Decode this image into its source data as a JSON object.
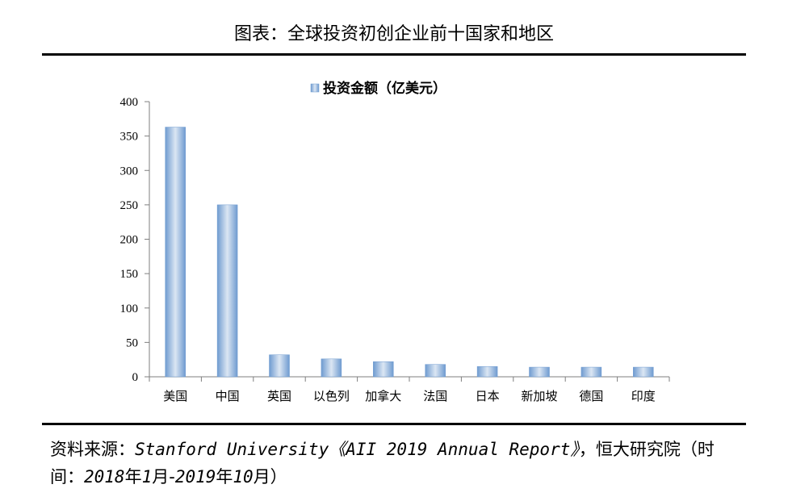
{
  "figure": {
    "title": "图表：全球投资初创企业前十国家和地区"
  },
  "source": {
    "prefix": "资料来源：",
    "english": "Stanford University《AII 2019 Annual Report》",
    "middle": "，恒大研究院（时间：",
    "period_start": "2018",
    "yr1": "年",
    "m1": "1",
    "mo1": "月-",
    "period_end": "2019",
    "yr2": "年",
    "m2": "10",
    "mo2": "月）"
  },
  "chart_data": {
    "type": "bar",
    "categories": [
      "美国",
      "中国",
      "英国",
      "以色列",
      "加拿大",
      "法国",
      "日本",
      "新加坡",
      "德国",
      "印度"
    ],
    "series": [
      {
        "name": "投资金额（亿美元）",
        "values": [
          363,
          250,
          32,
          26,
          22,
          18,
          15,
          14,
          14,
          14
        ]
      }
    ],
    "yticks": [
      0,
      50,
      100,
      150,
      200,
      250,
      300,
      350,
      400
    ],
    "ylim": [
      0,
      400
    ],
    "legend_position": "top-center",
    "grid": false,
    "colors": {
      "bar_edge": "#6f9bd0",
      "bar_center": "#dbe6f3",
      "axis": "#7f7f7f"
    }
  }
}
